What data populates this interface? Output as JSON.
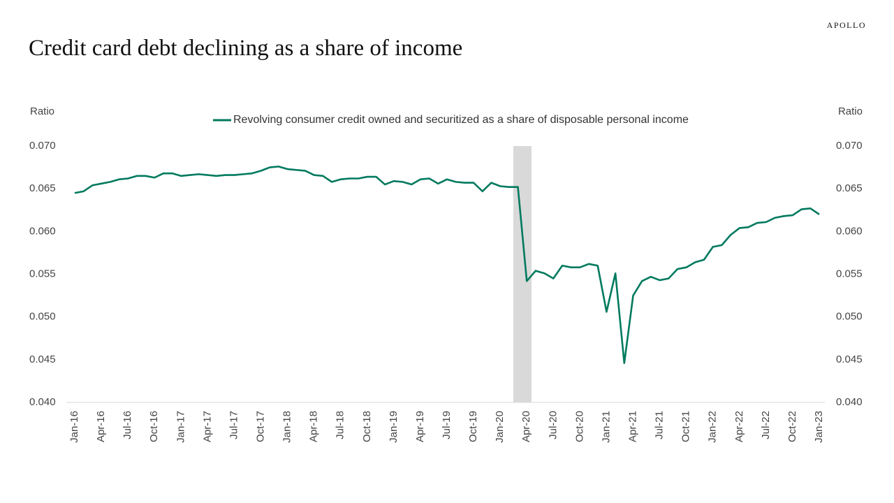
{
  "chart_data": {
    "type": "line",
    "title": "Credit card debt declining as a share of income",
    "brand": "APOLLO",
    "y_label": "Ratio",
    "y2_label": "Ratio",
    "categories": [
      "Jan-16",
      null,
      null,
      "Apr-16",
      null,
      null,
      "Jul-16",
      null,
      null,
      "Oct-16",
      null,
      null,
      "Jan-17",
      null,
      null,
      "Apr-17",
      null,
      null,
      "Jul-17",
      null,
      null,
      "Oct-17",
      null,
      null,
      "Jan-18",
      null,
      null,
      "Apr-18",
      null,
      null,
      "Jul-18",
      null,
      null,
      "Oct-18",
      null,
      null,
      "Jan-19",
      null,
      null,
      "Apr-19",
      null,
      null,
      "Jul-19",
      null,
      null,
      "Oct-19",
      null,
      null,
      "Jan-20",
      null,
      null,
      "Apr-20",
      null,
      null,
      "Jul-20",
      null,
      null,
      "Oct-20",
      null,
      null,
      "Jan-21",
      null,
      null,
      "Apr-21",
      null,
      null,
      "Jul-21",
      null,
      null,
      "Oct-21",
      null,
      null,
      "Jan-22",
      null,
      null,
      "Apr-22",
      null,
      null,
      "Jul-22",
      null,
      null,
      "Oct-22",
      null,
      null,
      "Jan-23"
    ],
    "series": [
      {
        "name": "Revolving consumer credit owned and securitized as a share of disposable personal income",
        "color": "#007a5e",
        "values": [
          0.0645,
          0.0647,
          0.0654,
          0.0656,
          0.0658,
          0.0661,
          0.0662,
          0.0665,
          0.0665,
          0.0663,
          0.0668,
          0.0668,
          0.0665,
          0.0666,
          0.0667,
          0.0666,
          0.0665,
          0.0666,
          0.0666,
          0.0667,
          0.0668,
          0.0671,
          0.0675,
          0.0676,
          0.0673,
          0.0672,
          0.0671,
          0.0666,
          0.0665,
          0.0658,
          0.0661,
          0.0662,
          0.0662,
          0.0664,
          0.0664,
          0.0655,
          0.0659,
          0.0658,
          0.0655,
          0.0661,
          0.0662,
          0.0656,
          0.0661,
          0.0658,
          0.0657,
          0.0657,
          0.0647,
          0.0657,
          0.0653,
          0.0652,
          0.0652,
          0.0542,
          0.0554,
          0.0551,
          0.0545,
          0.056,
          0.0558,
          0.0558,
          0.0562,
          0.056,
          0.0506,
          0.0551,
          0.0446,
          0.0525,
          0.0542,
          0.0547,
          0.0543,
          0.0545,
          0.0556,
          0.0558,
          0.0564,
          0.0567,
          0.0582,
          0.0584,
          0.0596,
          0.0604,
          0.0605,
          0.061,
          0.0611,
          0.0616,
          0.0618,
          0.0619,
          0.0626,
          0.0627,
          0.062
        ]
      }
    ],
    "ylim": [
      0.04,
      0.07
    ],
    "yticks": [
      {
        "value": 0.04,
        "label": "0.040"
      },
      {
        "value": 0.045,
        "label": "0.045"
      },
      {
        "value": 0.05,
        "label": "0.050"
      },
      {
        "value": 0.055,
        "label": "0.055"
      },
      {
        "value": 0.06,
        "label": "0.060"
      },
      {
        "value": 0.065,
        "label": "0.065"
      },
      {
        "value": 0.07,
        "label": "0.070"
      }
    ],
    "y2lim": [
      0.04,
      0.07
    ],
    "y2ticks": [
      {
        "value": 0.04,
        "label": "0.040"
      },
      {
        "value": 0.045,
        "label": "0.045"
      },
      {
        "value": 0.05,
        "label": "0.050"
      },
      {
        "value": 0.055,
        "label": "0.055"
      },
      {
        "value": 0.06,
        "label": "0.060"
      },
      {
        "value": 0.065,
        "label": "0.065"
      },
      {
        "value": 0.07,
        "label": "0.070"
      }
    ],
    "legend": "top"
  }
}
